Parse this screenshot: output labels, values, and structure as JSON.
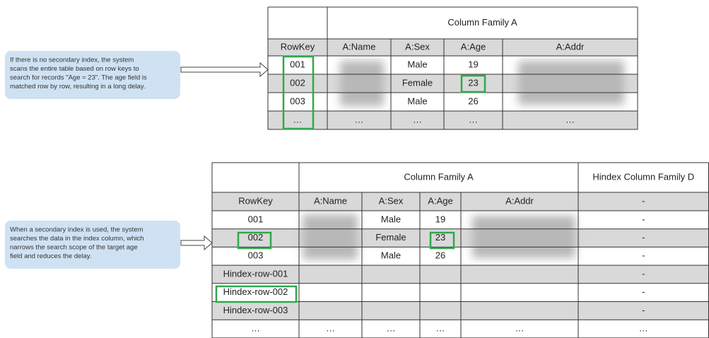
{
  "top_panel": {
    "note": [
      "If there is no secondary index, the system",
      "scans the entire table based on row keys to",
      "search for records \"Age = 23\". The age field is",
      "matched row by row, resulting in a long delay."
    ],
    "table": {
      "group_headers": [
        "Column Family A"
      ],
      "columns": [
        "RowKey",
        "A:Name",
        "A:Sex",
        "A:Age",
        "A:Addr"
      ],
      "rows": [
        {
          "row_key": "001",
          "sex": "Male",
          "age": "19"
        },
        {
          "row_key": "002",
          "sex": "Female",
          "age": "23"
        },
        {
          "row_key": "003",
          "sex": "Male",
          "age": "26"
        },
        {
          "row_key": "…",
          "name": "…",
          "sex": "…",
          "age": "…",
          "addr": "…"
        }
      ]
    }
  },
  "bottom_panel": {
    "note": [
      "When a secondary index is used, the system",
      "searches the data in the index column, which",
      "narrows the search scope of the target age",
      "field and reduces the delay."
    ],
    "table": {
      "group_headers": [
        "Column Family A",
        "Hindex Column Family D"
      ],
      "columns": [
        "RowKey",
        "A:Name",
        "A:Sex",
        "A:Age",
        "A:Addr",
        "-"
      ],
      "rows": [
        {
          "row_key": "001",
          "sex": "Male",
          "age": "19",
          "hindex": "-"
        },
        {
          "row_key": "002",
          "sex": "Female",
          "age": "23",
          "hindex": "-"
        },
        {
          "row_key": "003",
          "sex": "Male",
          "age": "26",
          "hindex": "-"
        },
        {
          "row_key": "Hindex-row-001",
          "hindex": "-"
        },
        {
          "row_key": "Hindex-row-002",
          "hindex": "-"
        },
        {
          "row_key": "Hindex-row-003",
          "hindex": "-"
        },
        {
          "row_key": "…",
          "name": "…",
          "sex": "…",
          "age": "…",
          "addr": "…",
          "hindex": "…"
        }
      ]
    }
  }
}
